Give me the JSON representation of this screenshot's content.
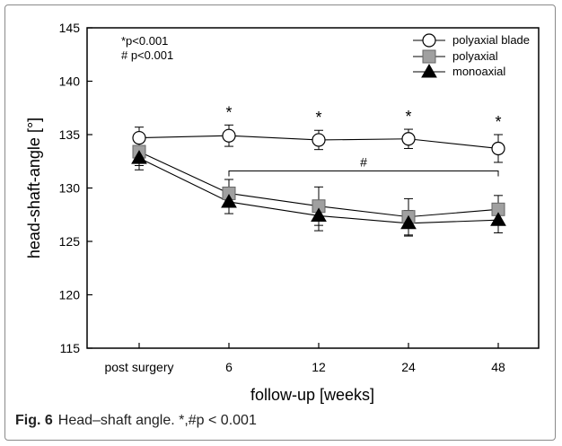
{
  "chart_data": {
    "type": "line",
    "categories": [
      "post surgery",
      "6",
      "12",
      "24",
      "48"
    ],
    "xlabel": "follow-up [weeks]",
    "ylabel": "head-shaft-angle [°]",
    "ylim": [
      115,
      145
    ],
    "yticks": [
      "115",
      "120",
      "125",
      "130",
      "135",
      "140",
      "145"
    ],
    "grid": false,
    "legend_position": "top-right",
    "series": [
      {
        "name": "polyaxial blade",
        "marker": "circle",
        "values": [
          134.7,
          134.9,
          134.5,
          134.6,
          133.7
        ],
        "errors": [
          1.0,
          1.0,
          0.9,
          0.9,
          1.3
        ]
      },
      {
        "name": "polyaxial",
        "marker": "square",
        "values": [
          133.4,
          129.5,
          128.3,
          127.3,
          128.0
        ],
        "errors": [
          1.3,
          1.3,
          1.8,
          1.7,
          1.3
        ]
      },
      {
        "name": "monoaxial",
        "marker": "triangle",
        "values": [
          132.8,
          128.7,
          127.4,
          126.7,
          127.0
        ],
        "errors": [
          1.1,
          1.1,
          1.4,
          1.2,
          1.2
        ]
      }
    ],
    "significance_stars": [
      "*",
      "*",
      "*",
      "*"
    ],
    "significance_hash": "#",
    "annotations": [
      "*p<0.001",
      "# p<0.001"
    ],
    "colors": {
      "axis": "#000000",
      "square_fill": "#a0a0a0",
      "triangle_fill": "#000000",
      "circle_fill": "#ffffff"
    }
  },
  "caption": {
    "label": "Fig. 6",
    "text": "Head–shaft angle. *,#p < 0.001"
  }
}
